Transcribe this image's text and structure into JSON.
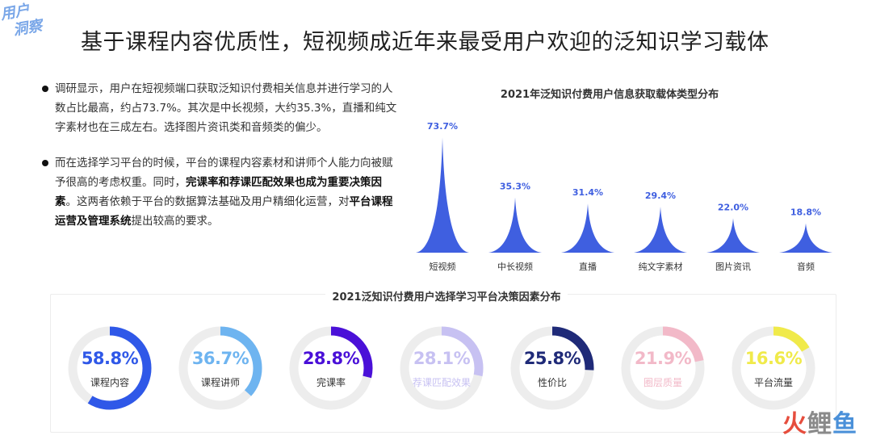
{
  "brand": {
    "line1": "用户",
    "line2": "洞察"
  },
  "title": "基于课程内容优质性，短视频成近年来最受用户欢迎的泛知识学习载体",
  "bullets": [
    {
      "parts": [
        {
          "text": "调研显示，用户在短视频端口获取泛知识付费相关信息并进行学习的人数占比最高，约占73.7%。其次是中长视频，大约35.3%，直播和纯文字素材也在三成左右。选择图片资讯类和音频类的偏少。",
          "bold": false
        }
      ]
    },
    {
      "parts": [
        {
          "text": "而在选择学习平台的时候，平台的课程内容素材和讲师个人能力向被赋予很高的考虑权重。同时，",
          "bold": false
        },
        {
          "text": "完课率和荐课匹配效果也成为重要决策因素",
          "bold": true
        },
        {
          "text": "。这两者依赖于平台的数据算法基础及用户精细化运营，对",
          "bold": false
        },
        {
          "text": "平台课程运营及管理系统",
          "bold": true
        },
        {
          "text": "提出较高的要求。",
          "bold": false
        }
      ]
    }
  ],
  "chart_data": [
    {
      "type": "bar",
      "title": "2021年泛知识付费用户信息获取载体类型分布",
      "categories": [
        "短视频",
        "中长视频",
        "直播",
        "纯文字素材",
        "图片资讯",
        "音频"
      ],
      "values": [
        73.7,
        35.3,
        31.4,
        29.4,
        22.0,
        18.8
      ],
      "labels": [
        "73.7%",
        "35.3%",
        "31.4%",
        "29.4%",
        "22.0%",
        "18.8%"
      ],
      "unit": "%",
      "color": "#3f5fe0",
      "ylim": [
        0,
        80
      ],
      "grid": false
    },
    {
      "type": "pie",
      "title": "2021泛知识付费用户选择学习平台决策因素分布",
      "categories": [
        "课程内容",
        "课程讲师",
        "完课率",
        "荐课匹配效果",
        "性价比",
        "圈层质量",
        "平台流量"
      ],
      "values": [
        58.8,
        36.7,
        28.8,
        28.1,
        25.8,
        21.9,
        16.6
      ],
      "labels": [
        "58.8%",
        "36.7%",
        "28.8%",
        "28.1%",
        "25.8%",
        "21.9%",
        "16.6%"
      ],
      "colors": [
        "#2f58e8",
        "#6eb4f0",
        "#4a10d8",
        "#c7c1f2",
        "#1f2a78",
        "#f2b9c8",
        "#f0ea4a"
      ],
      "track_color": "#ededed"
    }
  ],
  "watermark": {
    "c1": "火",
    "c2": "鲤",
    "c3": "鱼"
  }
}
